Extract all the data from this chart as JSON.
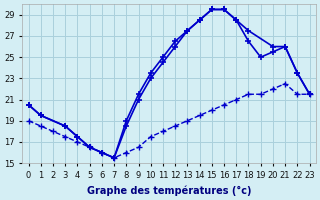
{
  "xlabel": "Graphe des températures (°c)",
  "background_color": "#d4eef4",
  "grid_color": "#aad0dc",
  "line_color": "#0000cc",
  "xlim": [
    -0.5,
    23.5
  ],
  "ylim": [
    15,
    30
  ],
  "yticks": [
    15,
    17,
    19,
    21,
    23,
    25,
    27,
    29
  ],
  "xticks": [
    0,
    1,
    2,
    3,
    4,
    5,
    6,
    7,
    8,
    9,
    10,
    11,
    12,
    13,
    14,
    15,
    16,
    17,
    18,
    19,
    20,
    21,
    22,
    23
  ],
  "line1_x": [
    0,
    1,
    3,
    4,
    5,
    6,
    7,
    8,
    9,
    10,
    11,
    12,
    13,
    14,
    15,
    16,
    17,
    18,
    20,
    21,
    22,
    23
  ],
  "line1_y": [
    20.5,
    19.5,
    18.5,
    17.5,
    16.5,
    16.0,
    15.5,
    19.0,
    21.5,
    23.5,
    25.0,
    26.5,
    27.5,
    28.5,
    29.5,
    29.5,
    28.5,
    27.5,
    26.0,
    26.0,
    23.5,
    21.5
  ],
  "line2_x": [
    0,
    1,
    3,
    4,
    5,
    6,
    7,
    8,
    9,
    10,
    11,
    12,
    13,
    14,
    15,
    16,
    17,
    18,
    19,
    20,
    21,
    22,
    23
  ],
  "line2_y": [
    20.5,
    19.5,
    18.5,
    17.5,
    16.5,
    16.0,
    15.5,
    18.5,
    21.0,
    23.0,
    24.5,
    26.0,
    27.5,
    28.5,
    29.5,
    29.5,
    28.5,
    26.5,
    25.0,
    25.5,
    26.0,
    23.5,
    21.5
  ],
  "line3_x": [
    0,
    1,
    2,
    3,
    4,
    5,
    6,
    7,
    8,
    9,
    10,
    11,
    12,
    13,
    14,
    15,
    16,
    17,
    18,
    19,
    20,
    21,
    22,
    23
  ],
  "line3_y": [
    19.0,
    18.5,
    18.0,
    17.5,
    17.0,
    16.5,
    16.0,
    15.5,
    16.0,
    16.5,
    17.5,
    18.0,
    18.5,
    19.0,
    19.5,
    20.0,
    20.5,
    21.0,
    21.5,
    21.5,
    22.0,
    22.5,
    21.5,
    21.5
  ]
}
